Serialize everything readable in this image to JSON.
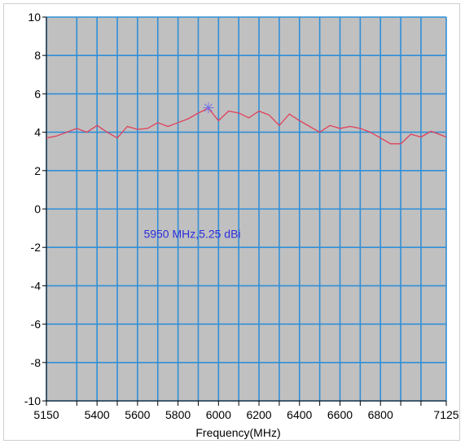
{
  "chart_data": {
    "type": "line",
    "title": "",
    "xlabel": "Frequency(MHz)",
    "ylabel": "",
    "xlim": [
      5150,
      7125
    ],
    "ylim": [
      -10,
      10
    ],
    "grid": true,
    "legend": "none",
    "x_tick_labels": [
      "5150",
      "5400",
      "5600",
      "5800",
      "6000",
      "6200",
      "6400",
      "6600",
      "6800",
      "7125"
    ],
    "x_tick_values": [
      5150,
      5400,
      5600,
      5800,
      6000,
      6200,
      6400,
      6600,
      6800,
      7125
    ],
    "x_gridlines": [
      5150,
      5300,
      5400,
      5500,
      5600,
      5700,
      5800,
      5900,
      6000,
      6100,
      6200,
      6300,
      6400,
      6500,
      6600,
      6700,
      6800,
      6900,
      7000,
      7125
    ],
    "y_tick_labels": [
      "10",
      "8",
      "6",
      "4",
      "2",
      "0",
      "-2",
      "-4",
      "-6",
      "-8",
      "-10"
    ],
    "y_tick_values": [
      10,
      8,
      6,
      4,
      2,
      0,
      -2,
      -4,
      -6,
      -8,
      -10
    ],
    "series": [
      {
        "x": [
          5150,
          5200,
          5250,
          5300,
          5350,
          5400,
          5450,
          5500,
          5550,
          5600,
          5650,
          5700,
          5750,
          5800,
          5850,
          5900,
          5950,
          6000,
          6050,
          6100,
          6150,
          6200,
          6250,
          6300,
          6350,
          6400,
          6450,
          6500,
          6550,
          6600,
          6650,
          6700,
          6750,
          6800,
          6850,
          6900,
          6950,
          7000,
          7050,
          7125
        ],
        "y": [
          3.7,
          3.8,
          4.0,
          4.2,
          4.0,
          4.35,
          4.0,
          3.7,
          4.3,
          4.15,
          4.2,
          4.5,
          4.3,
          4.5,
          4.7,
          5.0,
          5.25,
          4.6,
          5.1,
          5.0,
          4.75,
          5.1,
          4.9,
          4.35,
          4.95,
          4.6,
          4.3,
          4.0,
          4.35,
          4.2,
          4.3,
          4.2,
          4.0,
          3.7,
          3.4,
          3.4,
          3.9,
          3.75,
          4.05,
          3.75
        ]
      }
    ],
    "marker": {
      "x": 5950,
      "y": 5.25,
      "symbol": "✳"
    },
    "annotation": "5950 MHz,5.25 dBi",
    "annotation_anchor": {
      "x": 5870,
      "y": -1.3
    },
    "colors": {
      "plot_background": "#c0c0c0",
      "grid": "#2f8fd8",
      "line": "#e0405a",
      "annotation": "#2d2ddb",
      "marker": "#6a6af0"
    }
  }
}
